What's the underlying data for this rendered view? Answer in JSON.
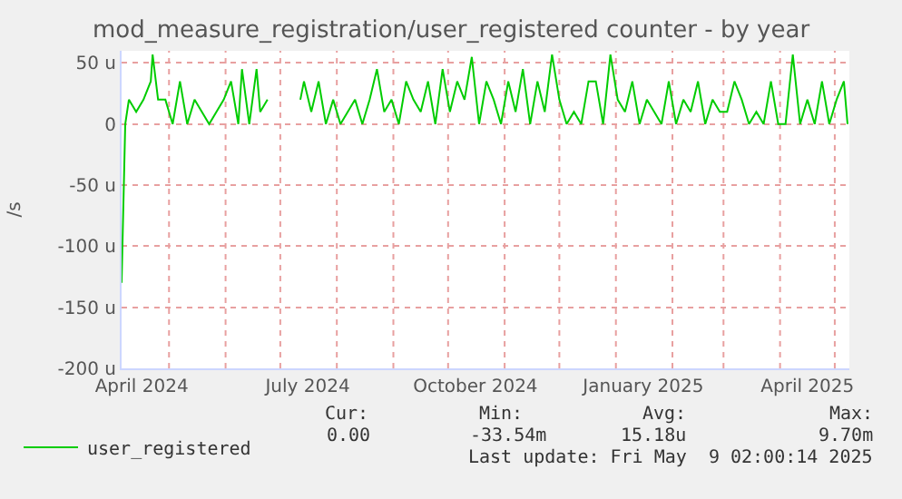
{
  "chart_data": {
    "type": "line",
    "title": "mod_measure_registration/user_registered counter - by year",
    "ylabel": "/s",
    "x": [
      "2024-04-05",
      "2024-04-07",
      "2024-04-09",
      "2024-04-13",
      "2024-04-17",
      "2024-04-21",
      "2024-04-22",
      "2024-04-25",
      "2024-04-29",
      "2024-05-03",
      "2024-05-07",
      "2024-05-11",
      "2024-05-15",
      "2024-05-19",
      "2024-05-23",
      "2024-05-27",
      "2024-05-31",
      "2024-06-04",
      "2024-06-08",
      "2024-06-10",
      "2024-06-14",
      "2024-06-18",
      "2024-06-20",
      "2024-06-24",
      "2024-06-27",
      "2024-07-12",
      "2024-07-14",
      "2024-07-18",
      "2024-07-22",
      "2024-07-26",
      "2024-07-30",
      "2024-08-03",
      "2024-08-07",
      "2024-08-11",
      "2024-08-15",
      "2024-08-19",
      "2024-08-23",
      "2024-08-27",
      "2024-08-31",
      "2024-09-04",
      "2024-09-08",
      "2024-09-12",
      "2024-09-16",
      "2024-09-20",
      "2024-09-24",
      "2024-09-28",
      "2024-10-02",
      "2024-10-06",
      "2024-10-10",
      "2024-10-14",
      "2024-10-18",
      "2024-10-22",
      "2024-10-26",
      "2024-10-30",
      "2024-11-03",
      "2024-11-07",
      "2024-11-11",
      "2024-11-15",
      "2024-11-19",
      "2024-11-23",
      "2024-11-27",
      "2024-12-01",
      "2024-12-05",
      "2024-12-09",
      "2024-12-13",
      "2024-12-17",
      "2024-12-21",
      "2024-12-25",
      "2024-12-29",
      "2025-01-02",
      "2025-01-06",
      "2025-01-10",
      "2025-01-14",
      "2025-01-18",
      "2025-01-22",
      "2025-01-26",
      "2025-01-30",
      "2025-02-03",
      "2025-02-07",
      "2025-02-11",
      "2025-02-15",
      "2025-02-19",
      "2025-02-23",
      "2025-02-27",
      "2025-03-03",
      "2025-03-07",
      "2025-03-11",
      "2025-03-15",
      "2025-03-19",
      "2025-03-23",
      "2025-03-27",
      "2025-03-31",
      "2025-04-04",
      "2025-04-08",
      "2025-04-12",
      "2025-04-16",
      "2025-04-20",
      "2025-04-24",
      "2025-04-28",
      "2025-05-02",
      "2025-05-06",
      "2025-05-08"
    ],
    "series": [
      {
        "name": "user_registered",
        "color": "#00cc00",
        "values": [
          -130,
          0,
          20,
          10,
          20,
          35,
          57,
          20,
          20,
          0,
          35,
          0,
          20,
          10,
          0,
          10,
          20,
          35,
          0,
          45,
          0,
          45,
          10,
          20,
          null,
          20,
          35,
          10,
          35,
          0,
          20,
          0,
          10,
          20,
          0,
          20,
          45,
          10,
          20,
          0,
          35,
          20,
          10,
          35,
          0,
          45,
          10,
          35,
          20,
          55,
          0,
          35,
          20,
          0,
          35,
          10,
          45,
          0,
          35,
          10,
          57,
          20,
          0,
          10,
          0,
          35,
          35,
          0,
          57,
          20,
          10,
          35,
          0,
          20,
          10,
          0,
          35,
          0,
          20,
          10,
          35,
          0,
          20,
          10,
          10,
          35,
          20,
          0,
          10,
          0,
          35,
          0,
          0,
          57,
          0,
          20,
          0,
          35,
          0,
          20,
          35,
          0
        ]
      }
    ],
    "xlim": [
      "2024-04-05",
      "2025-05-09"
    ],
    "xticks": [
      {
        "value": "2024-04-16",
        "label": "April 2024"
      },
      {
        "value": "2024-07-16",
        "label": "July 2024"
      },
      {
        "value": "2024-10-16",
        "label": "October 2024"
      },
      {
        "value": "2025-01-16",
        "label": "January 2025"
      },
      {
        "value": "2025-04-16",
        "label": "April 2025"
      },
      {
        "value": "2024-05-01",
        "label": null
      },
      {
        "value": "2024-06-01",
        "label": null
      },
      {
        "value": "2024-07-01",
        "label": null
      },
      {
        "value": "2024-08-01",
        "label": null
      },
      {
        "value": "2024-09-01",
        "label": null
      },
      {
        "value": "2024-10-01",
        "label": null
      },
      {
        "value": "2024-11-01",
        "label": null
      },
      {
        "value": "2024-12-01",
        "label": null
      },
      {
        "value": "2025-01-01",
        "label": null
      },
      {
        "value": "2025-02-01",
        "label": null
      },
      {
        "value": "2025-03-01",
        "label": null
      },
      {
        "value": "2025-04-01",
        "label": null
      },
      {
        "value": "2025-05-01",
        "label": null
      }
    ],
    "ylim": [
      -200,
      60
    ],
    "yticks": [
      {
        "value": -200,
        "label": "-200 u"
      },
      {
        "value": -150,
        "label": "-150 u"
      },
      {
        "value": -100,
        "label": "-100 u"
      },
      {
        "value": -50,
        "label": "-50 u"
      },
      0,
      {
        "value": 50,
        "label": "50 u"
      }
    ],
    "grid": true,
    "legend": "bottom left",
    "marker": "none",
    "line_style": "solid",
    "annotations": [
      "Cur:",
      "Min:",
      "Avg:",
      "Max:",
      "0.00",
      "-33.54m",
      "15.18u",
      "9.70m",
      "Last update: Fri May  9 02:00:14 2025"
    ]
  }
}
